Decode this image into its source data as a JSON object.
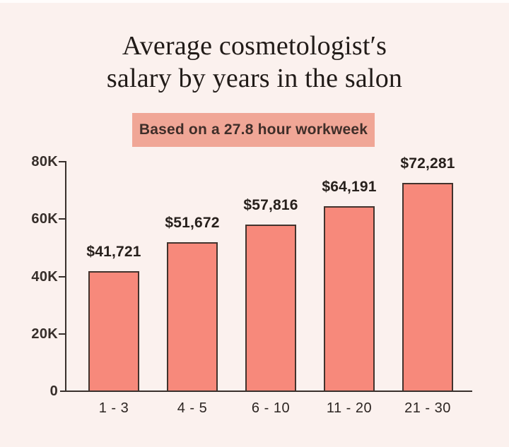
{
  "page": {
    "background_color": "#fbf1ee",
    "top_strip_color": "#fffdfc"
  },
  "title": {
    "line1": "Average cosmetologist′s",
    "line2": "salary by years in the salon"
  },
  "badge": {
    "label": "Based on a 27.8 hour workweek",
    "background_color": "#f0a696",
    "text_color": "#3f2e29"
  },
  "chart_data": {
    "type": "bar",
    "title": "Average cosmetologist′s salary by years in the salon",
    "subtitle": "Based on a 27.8 hour workweek",
    "categories": [
      "1 - 3",
      "4 - 5",
      "6 - 10",
      "11 - 20",
      "21 - 30"
    ],
    "values": [
      41721,
      51672,
      57816,
      64191,
      72281
    ],
    "value_labels": [
      "$41,721",
      "$51,672",
      "$57,816",
      "$64,191",
      "$72,281"
    ],
    "ylim": [
      0,
      80000
    ],
    "yticks": {
      "labels": [
        "80K",
        "60K",
        "40K",
        "20K",
        "0"
      ],
      "values": [
        80000,
        60000,
        40000,
        20000,
        0
      ]
    },
    "grid": false,
    "legend": false,
    "bar_color": "#f7897b",
    "bar_border_color": "#42332d",
    "axis_color": "#38302c",
    "label_color": "#27201c"
  }
}
